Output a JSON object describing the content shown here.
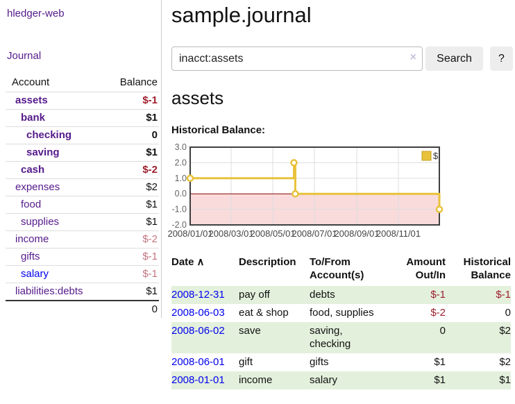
{
  "app": {
    "title": "hledger-web"
  },
  "colors": {
    "purple": "#551a8b",
    "blue": "#0000ee",
    "neg-dark": "#9d1f2d",
    "neg-light": "#c4737f",
    "stripe": "#e3f0dc",
    "btn-bg": "#ededed",
    "divider": "#cccccc"
  },
  "sidebar": {
    "journal_link": "Journal",
    "accounts_table": {
      "headers": {
        "account": "Account",
        "balance": "Balance"
      },
      "rows": [
        {
          "name": "assets",
          "depth": 1,
          "bold": true,
          "balance": "$-1",
          "balance_color": "negative-dark"
        },
        {
          "name": "bank",
          "depth": 2,
          "bold": true,
          "balance": "$1",
          "balance_color": "normal"
        },
        {
          "name": "checking",
          "depth": 3,
          "bold": true,
          "balance": "0",
          "balance_color": "normal"
        },
        {
          "name": "saving",
          "depth": 3,
          "bold": true,
          "balance": "$1",
          "balance_color": "normal"
        },
        {
          "name": "cash",
          "depth": 2,
          "bold": true,
          "balance": "$-2",
          "balance_color": "negative-dark"
        },
        {
          "name": "expenses",
          "depth": 1,
          "bold": false,
          "balance": "$2",
          "balance_color": "normal"
        },
        {
          "name": "food",
          "depth": 2,
          "bold": false,
          "balance": "$1",
          "balance_color": "normal"
        },
        {
          "name": "supplies",
          "depth": 2,
          "bold": false,
          "balance": "$1",
          "balance_color": "normal"
        },
        {
          "name": "income",
          "depth": 1,
          "bold": false,
          "balance": "$-2",
          "balance_color": "negative-light"
        },
        {
          "name": "gifts",
          "depth": 2,
          "bold": false,
          "balance": "$-1",
          "balance_color": "negative-light"
        },
        {
          "name": "salary",
          "depth": 2,
          "bold": false,
          "balance": "$-1",
          "balance_color": "negative-light",
          "link_color": "blue"
        },
        {
          "name": "liabilities:debts",
          "depth": 1,
          "bold": false,
          "balance": "$1",
          "balance_color": "normal"
        }
      ],
      "total": "0"
    }
  },
  "main": {
    "page_title": "sample.journal",
    "search": {
      "value": "inacct:assets",
      "clear_icon": "×",
      "search_button": "Search",
      "help_button": "?"
    },
    "account_heading": "assets",
    "chart_label": "Historical Balance:",
    "register_table": {
      "headers": [
        "Date",
        "Description",
        "To/From Account(s)",
        "Amount Out/In",
        "Historical Balance"
      ],
      "sort_icon": "∧",
      "rows": [
        {
          "date": "2008-12-31",
          "description": "pay off",
          "accounts": "debts",
          "amount": "$-1",
          "amount_neg": true,
          "balance": "$-1",
          "balance_neg": true
        },
        {
          "date": "2008-06-03",
          "description": "eat & shop",
          "accounts": "food, supplies",
          "amount": "$-2",
          "amount_neg": true,
          "balance": "0",
          "balance_neg": false
        },
        {
          "date": "2008-06-02",
          "description": "save",
          "accounts": "saving, checking",
          "amount": "0",
          "amount_neg": false,
          "balance": "$2",
          "balance_neg": false
        },
        {
          "date": "2008-06-01",
          "description": "gift",
          "accounts": "gifts",
          "amount": "$1",
          "amount_neg": false,
          "balance": "$2",
          "balance_neg": false
        },
        {
          "date": "2008-01-01",
          "description": "income",
          "accounts": "salary",
          "amount": "$1",
          "amount_neg": false,
          "balance": "$1",
          "balance_neg": false
        }
      ]
    }
  },
  "chart_data": {
    "type": "line",
    "step": true,
    "title": "Historical Balance:",
    "series": [
      {
        "name": "$",
        "color": "#e8c23c",
        "marker_fill": "#ffffff",
        "points": [
          {
            "date": "2008-01-01",
            "value": 1
          },
          {
            "date": "2008-06-01",
            "value": 2
          },
          {
            "date": "2008-06-03",
            "value": 0
          },
          {
            "date": "2008-12-31",
            "value": -1
          }
        ]
      }
    ],
    "x_range": [
      "2008-01-01",
      "2008-12-31"
    ],
    "x_ticks": [
      {
        "date": "2008-01-01",
        "label": "2008/01/01"
      },
      {
        "date": "2008-03-01",
        "label": "2008/03/01"
      },
      {
        "date": "2008-05-01",
        "label": "2008/05/01"
      },
      {
        "date": "2008-07-01",
        "label": "2008/07/01"
      },
      {
        "date": "2008-09-01",
        "label": "2008/09/01"
      },
      {
        "date": "2008-11-01",
        "label": "2008/11/01"
      }
    ],
    "ylim": [
      -2,
      3
    ],
    "y_ticks": [
      3,
      2,
      1,
      0,
      -1,
      -2
    ],
    "grid": true,
    "legend": {
      "position": "top-right",
      "label": "$",
      "swatch_border": "#c79f1e"
    },
    "negative_region_fill": "#f9dbdb",
    "zero_line_color": "#8b0000",
    "grid_color": "#dddddd",
    "border_color": "#3f3f3f"
  }
}
